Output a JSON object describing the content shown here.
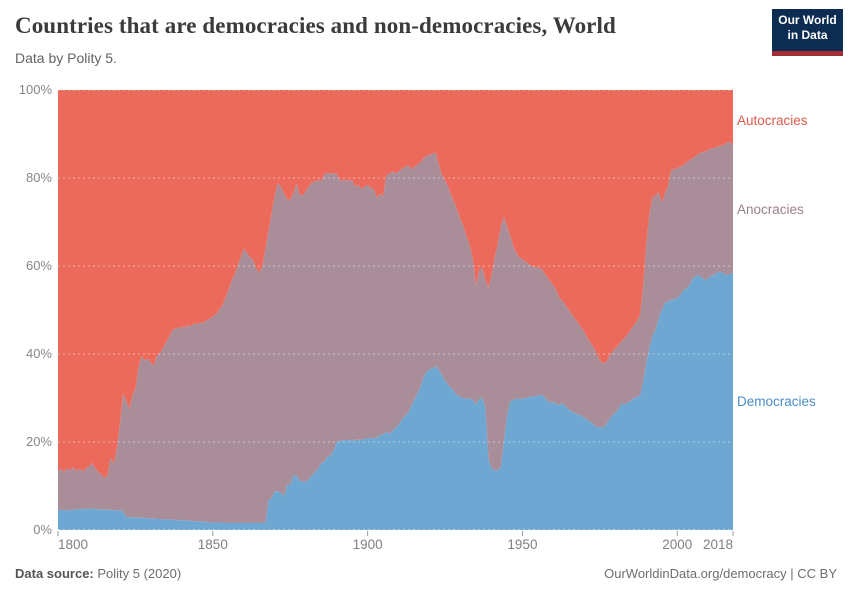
{
  "header": {
    "title": "Countries that are democracies and non-democracies, World",
    "subtitle": "Data by Polity 5.",
    "logo": {
      "line1": "Our World",
      "line2": "in Data"
    }
  },
  "footer": {
    "source_label": "Data source:",
    "source_value": " Polity 5 (2020)",
    "credit": "OurWorldinData.org/democracy | CC BY"
  },
  "chart_data": {
    "type": "area",
    "stacked": true,
    "unit": "%",
    "title": "Countries that are democracies and non-democracies, World",
    "x_range": [
      1800,
      2018
    ],
    "y_range": [
      0,
      100
    ],
    "x_ticks": [
      1800,
      1850,
      1900,
      1950,
      2000,
      2018
    ],
    "y_ticks": [
      0,
      20,
      40,
      60,
      80,
      100
    ],
    "grid": true,
    "legend_position": "inline-right",
    "x_step_years": 1,
    "series": [
      {
        "name": "Democracies",
        "color": "#6ea7d2",
        "label_color": "#4a8cc7",
        "values": [
          4.5,
          4.6,
          4.4,
          4.6,
          4.5,
          4.6,
          4.8,
          4.7,
          4.8,
          4.8,
          4.9,
          4.8,
          4.8,
          4.7,
          4.7,
          4.6,
          4.6,
          4.6,
          4.5,
          4.5,
          4.4,
          4.3,
          3.0,
          2.9,
          2.9,
          2.8,
          2.8,
          2.8,
          2.7,
          2.7,
          2.6,
          2.6,
          2.5,
          2.5,
          2.4,
          2.4,
          2.4,
          2.3,
          2.3,
          2.2,
          2.2,
          2.2,
          2.1,
          2.1,
          2.0,
          2.0,
          1.9,
          1.9,
          1.8,
          1.8,
          1.7,
          1.7,
          1.7,
          1.7,
          1.6,
          1.6,
          1.6,
          1.6,
          1.6,
          1.6,
          1.6,
          1.6,
          1.6,
          1.6,
          1.6,
          1.6,
          1.6,
          1.7,
          7.0,
          7.2,
          8.8,
          8.8,
          8.6,
          7.6,
          10.2,
          10.3,
          12.3,
          12.5,
          11.2,
          11.0,
          11.0,
          11.5,
          12.5,
          13.0,
          14.0,
          15.2,
          15.5,
          16.6,
          17.0,
          18.0,
          20.0,
          20.3,
          20.4,
          20.5,
          20.4,
          20.4,
          20.5,
          20.5,
          20.5,
          20.6,
          21.0,
          20.9,
          20.8,
          21.0,
          21.5,
          21.8,
          22.3,
          21.8,
          22.5,
          23.2,
          24.0,
          25.0,
          26.0,
          26.5,
          28.0,
          29.5,
          31.0,
          32.5,
          34.5,
          36.0,
          36.5,
          36.8,
          37.2,
          36.5,
          35.2,
          34.0,
          33.0,
          32.3,
          31.5,
          30.5,
          30.2,
          30.0,
          29.8,
          30.0,
          29.5,
          28.6,
          29.8,
          30.0,
          28.0,
          16.3,
          14.0,
          13.6,
          13.6,
          14.2,
          20.0,
          26.0,
          29.2,
          29.5,
          30.0,
          29.8,
          29.8,
          30.0,
          30.2,
          30.3,
          30.4,
          30.6,
          30.8,
          30.2,
          29.5,
          28.8,
          29.2,
          28.6,
          28.4,
          28.8,
          28.0,
          27.3,
          27.0,
          26.5,
          26.2,
          26.0,
          25.5,
          25.0,
          24.6,
          24.0,
          23.3,
          23.5,
          23.2,
          24.0,
          25.0,
          26.1,
          26.5,
          27.5,
          28.8,
          28.4,
          29.0,
          29.3,
          30.0,
          30.3,
          30.7,
          33.7,
          38.0,
          41.3,
          44.0,
          45.5,
          48.1,
          50.0,
          51.5,
          52.0,
          52.3,
          52.5,
          52.7,
          53.5,
          54.5,
          54.9,
          55.8,
          57.2,
          57.8,
          57.9,
          57.3,
          56.8,
          57.2,
          57.9,
          57.9,
          58.6,
          58.8,
          58.3,
          57.9,
          58.2,
          58.4
        ]
      },
      {
        "name": "Anocracies",
        "color": "#a98e99",
        "label_color": "#9a7f8f",
        "values": [
          9.0,
          9.2,
          8.8,
          9.4,
          9.1,
          9.6,
          8.6,
          9.2,
          8.5,
          9.3,
          9.5,
          10.5,
          9.2,
          8.5,
          7.9,
          7.2,
          7.7,
          11.9,
          10.5,
          14.0,
          19.6,
          26.7,
          26.5,
          24.4,
          27.6,
          29.2,
          34.2,
          36.7,
          35.8,
          36.3,
          35.4,
          34.8,
          37.3,
          37.7,
          39.1,
          40.4,
          41.6,
          43.2,
          43.5,
          43.8,
          44.0,
          43.8,
          44.5,
          44.2,
          45.0,
          44.8,
          45.3,
          45.1,
          46.0,
          46.2,
          46.8,
          47.3,
          48.3,
          49.3,
          50.9,
          52.9,
          54.9,
          56.4,
          58.4,
          60.4,
          62.4,
          61.4,
          60.4,
          59.9,
          57.9,
          56.9,
          58.4,
          62.3,
          61.0,
          64.8,
          67.2,
          70.0,
          69.4,
          68.9,
          65.0,
          64.7,
          64.2,
          66.3,
          65.1,
          65.0,
          66.0,
          66.5,
          66.5,
          66.3,
          65.5,
          64.1,
          65.5,
          64.5,
          64.0,
          63.1,
          61.0,
          59.2,
          59.1,
          59.1,
          59.0,
          59.1,
          57.5,
          58.0,
          57.0,
          57.4,
          57.5,
          56.9,
          56.7,
          54.5,
          55.0,
          54.0,
          58.2,
          59.2,
          59.0,
          57.8,
          57.5,
          57.0,
          56.5,
          56.5,
          54.0,
          53.0,
          52.0,
          51.0,
          50.0,
          49.0,
          48.8,
          48.7,
          48.6,
          46.5,
          45.5,
          45.5,
          45.0,
          43.8,
          43.0,
          42.0,
          40.3,
          39.0,
          36.7,
          34.8,
          32.0,
          26.9,
          29.2,
          29.8,
          29.0,
          38.7,
          44.0,
          48.1,
          51.4,
          54.8,
          51.2,
          43.0,
          37.8,
          35.0,
          32.9,
          32.2,
          31.7,
          31.0,
          30.3,
          29.7,
          29.4,
          29.0,
          28.7,
          28.3,
          28.0,
          27.7,
          26.3,
          25.9,
          24.3,
          23.2,
          23.0,
          22.7,
          21.9,
          21.5,
          20.8,
          20.0,
          19.5,
          18.6,
          17.9,
          17.5,
          16.7,
          15.0,
          14.7,
          14.2,
          14.5,
          14.4,
          14.8,
          14.5,
          14.2,
          15.2,
          15.5,
          16.2,
          16.6,
          17.2,
          18.2,
          22.0,
          27.0,
          30.7,
          31.6,
          30.5,
          28.7,
          24.4,
          25.0,
          26.0,
          29.5,
          29.5,
          29.6,
          29.1,
          28.5,
          28.6,
          28.3,
          27.3,
          27.2,
          27.7,
          28.5,
          29.2,
          29.2,
          28.7,
          29.0,
          28.5,
          28.5,
          29.2,
          30.1,
          30.1,
          29.1
        ]
      },
      {
        "name": "Autocracies",
        "color": "#ec6a5b",
        "label_color": "#e0594b",
        "values": [
          86.5,
          86.2,
          86.8,
          86.0,
          86.4,
          85.8,
          86.6,
          86.1,
          86.7,
          85.9,
          85.6,
          84.7,
          86.0,
          86.8,
          87.4,
          88.2,
          87.7,
          83.5,
          85.0,
          81.5,
          76.0,
          69.0,
          70.5,
          72.7,
          69.5,
          68.0,
          63.0,
          60.5,
          61.5,
          61.0,
          62.0,
          62.6,
          60.2,
          59.8,
          58.5,
          57.2,
          56.0,
          54.5,
          54.2,
          54.0,
          53.8,
          54.0,
          53.4,
          53.7,
          53.0,
          53.2,
          52.8,
          53.0,
          52.2,
          52.0,
          51.5,
          51.0,
          50.0,
          49.0,
          47.5,
          45.5,
          43.5,
          42.0,
          40.0,
          38.0,
          36.0,
          37.0,
          38.0,
          38.5,
          40.5,
          41.5,
          40.0,
          36.0,
          32.0,
          28.0,
          24.0,
          21.2,
          22.0,
          23.5,
          24.8,
          25.0,
          23.5,
          21.2,
          23.7,
          24.0,
          23.0,
          22.0,
          21.0,
          20.7,
          20.5,
          20.7,
          19.0,
          18.9,
          19.0,
          18.9,
          19.0,
          20.5,
          20.5,
          20.4,
          20.6,
          20.5,
          22.0,
          21.5,
          22.5,
          22.0,
          21.5,
          22.2,
          22.5,
          24.5,
          23.5,
          24.2,
          19.5,
          19.0,
          18.5,
          19.0,
          18.5,
          18.0,
          17.5,
          17.0,
          18.0,
          17.5,
          17.0,
          16.5,
          15.5,
          15.0,
          14.7,
          14.5,
          14.2,
          17.0,
          19.3,
          20.5,
          22.0,
          23.9,
          25.5,
          27.5,
          29.5,
          31.0,
          33.5,
          35.2,
          38.5,
          44.5,
          41.0,
          40.2,
          43.0,
          45.0,
          42.0,
          38.3,
          35.0,
          31.0,
          28.8,
          31.0,
          33.0,
          35.5,
          37.1,
          38.0,
          38.5,
          39.0,
          39.5,
          40.0,
          40.2,
          40.4,
          40.5,
          41.5,
          42.5,
          43.5,
          44.5,
          45.5,
          47.3,
          48.0,
          49.0,
          50.0,
          51.1,
          52.0,
          53.0,
          54.0,
          55.0,
          56.4,
          57.5,
          58.5,
          60.0,
          61.5,
          62.1,
          61.8,
          60.5,
          59.5,
          58.7,
          58.0,
          57.0,
          56.4,
          55.5,
          54.5,
          53.4,
          52.5,
          51.1,
          44.3,
          35.0,
          28.0,
          24.4,
          24.0,
          23.2,
          25.6,
          23.5,
          22.0,
          18.2,
          18.0,
          17.7,
          17.4,
          17.0,
          16.5,
          15.9,
          15.5,
          15.0,
          14.4,
          14.2,
          14.0,
          13.6,
          13.4,
          13.1,
          12.9,
          12.7,
          12.5,
          12.0,
          11.7,
          12.5
        ]
      }
    ]
  }
}
